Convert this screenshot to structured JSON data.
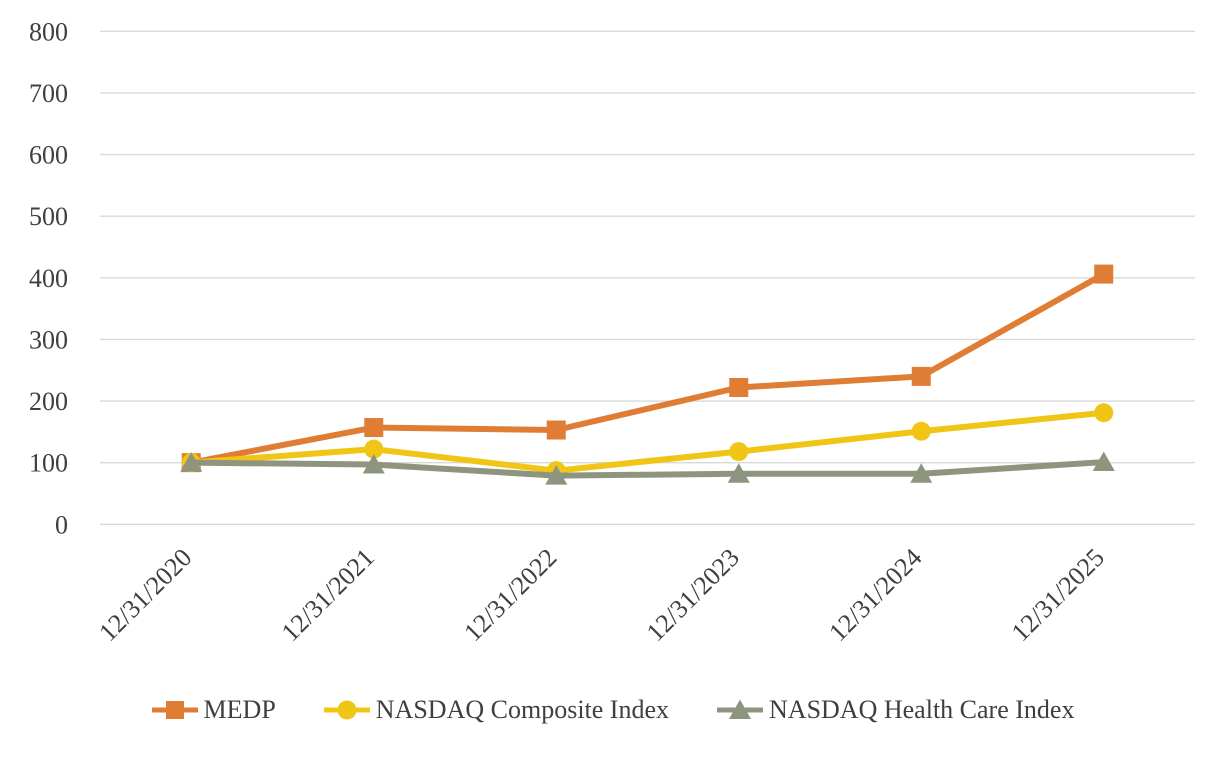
{
  "chart_data": {
    "type": "line",
    "title": "",
    "xlabel": "",
    "ylabel": "",
    "categories": [
      "12/31/2020",
      "12/31/2021",
      "12/31/2022",
      "12/31/2023",
      "12/31/2024",
      "12/31/2025"
    ],
    "series": [
      {
        "name": "MEDP",
        "marker": "square",
        "color": "#e07d35",
        "values": [
          100,
          157,
          153,
          222,
          240,
          406
        ]
      },
      {
        "name": "NASDAQ Composite Index",
        "marker": "circle",
        "color": "#f0c516",
        "values": [
          100,
          122,
          87,
          118,
          151,
          181
        ]
      },
      {
        "name": "NASDAQ Health Care Index",
        "marker": "triangle",
        "color": "#8e957f",
        "values": [
          100,
          97,
          79,
          82,
          82,
          101
        ]
      }
    ],
    "ylim": [
      0,
      800
    ],
    "ytick_step": 100,
    "yticks": [
      0,
      100,
      200,
      300,
      400,
      500,
      600,
      700,
      800
    ],
    "grid": "horizontal",
    "gridline_color": "#d9d9d9",
    "axis_text_color": "#3f3f3f",
    "background_color": "#ffffff",
    "x_tick_rotation": -45,
    "legend_position": "bottom"
  }
}
